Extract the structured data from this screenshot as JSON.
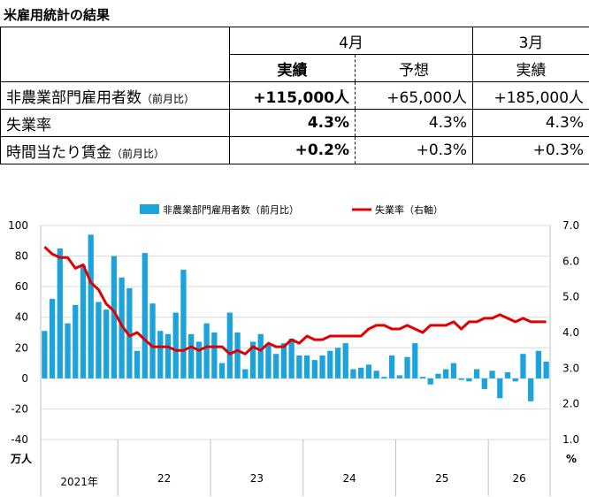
{
  "title": "米雇用統計の結果",
  "table": {
    "period_april": "4月",
    "period_march": "3月",
    "col_actual": "実績",
    "col_forecast": "予想",
    "rows": [
      {
        "label": "非農業部門雇用者数",
        "note": "（前月比）",
        "actual_apr": "+115,000人",
        "forecast_apr": "+65,000人",
        "actual_mar": "+185,000人"
      },
      {
        "label": "失業率",
        "note": "",
        "actual_apr": "4.3%",
        "forecast_apr": "4.3%",
        "actual_mar": "4.3%"
      },
      {
        "label": "時間当たり賃金",
        "note": "（前月比）",
        "actual_apr": "+0.2%",
        "forecast_apr": "+0.3%",
        "actual_mar": "+0.3%"
      }
    ]
  },
  "colors": {
    "bar": "#1ca3dc",
    "line": "#e00000",
    "grid": "#d9d9d9"
  },
  "chart_data": {
    "type": "bar",
    "left_axis": {
      "ticks": [
        100,
        80,
        60,
        40,
        20,
        0,
        -20,
        -40
      ],
      "unit": "万人",
      "ylim": [
        -40,
        100
      ]
    },
    "right_axis": {
      "ticks": [
        "7.0",
        "6.0",
        "5.0",
        "4.0",
        "3.0",
        "2.0",
        "1.0"
      ],
      "unit": "%",
      "ylim": [
        1.0,
        7.0
      ]
    },
    "x_group_labels": [
      "2021年",
      "22",
      "23",
      "24",
      "25",
      "26"
    ],
    "legend_position": "top",
    "series": [
      {
        "name": "非農業部門雇用者数（前月比）",
        "type": "bar",
        "axis": "left",
        "values": [
          31,
          52,
          85,
          36,
          48,
          74,
          94,
          50,
          45,
          80,
          66,
          59,
          18,
          82,
          49,
          31,
          29,
          43,
          71,
          29,
          24,
          36,
          30,
          10,
          43,
          30,
          6,
          24,
          29,
          22,
          16,
          23,
          26,
          15,
          15,
          12,
          15,
          18,
          20,
          23,
          6,
          7,
          9,
          5,
          1,
          15,
          2,
          14,
          23,
          1,
          -4,
          3,
          6,
          10,
          -1,
          -2,
          6,
          -7,
          5,
          -13,
          4,
          -2,
          16,
          -15,
          18,
          11
        ]
      },
      {
        "name": "失業率（右軸）",
        "type": "line",
        "axis": "right",
        "values": [
          6.4,
          6.2,
          6.1,
          6.1,
          5.8,
          5.9,
          5.4,
          5.2,
          4.8,
          4.6,
          4.2,
          3.9,
          4.0,
          3.8,
          3.6,
          3.6,
          3.6,
          3.5,
          3.5,
          3.6,
          3.5,
          3.6,
          3.6,
          3.6,
          3.4,
          3.5,
          3.4,
          3.6,
          3.5,
          3.7,
          3.6,
          3.6,
          3.8,
          3.7,
          3.9,
          3.8,
          3.8,
          3.9,
          3.9,
          3.9,
          3.9,
          3.9,
          4.1,
          4.2,
          4.2,
          4.1,
          4.1,
          4.2,
          4.1,
          4.0,
          4.2,
          4.2,
          4.2,
          4.3,
          4.1,
          4.3,
          4.3,
          4.4,
          4.4,
          4.5,
          4.4,
          4.3,
          4.4,
          4.3,
          4.3,
          4.3
        ]
      }
    ]
  }
}
